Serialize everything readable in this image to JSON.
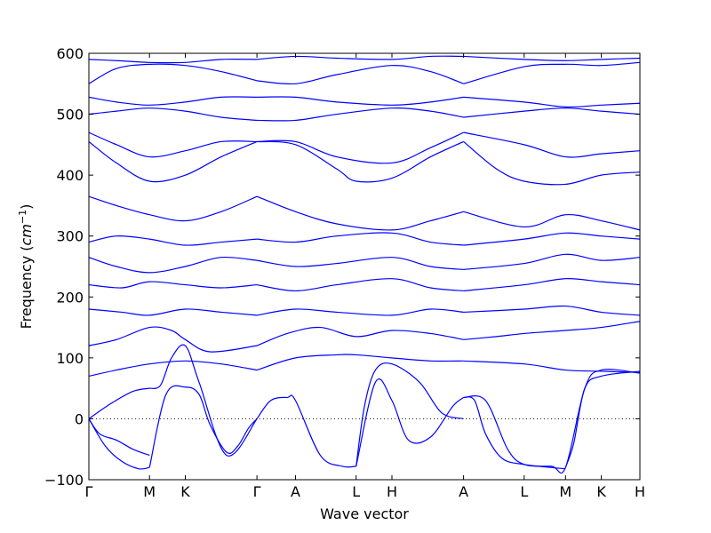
{
  "chart_data": {
    "type": "line",
    "xlabel": "Wave vector",
    "ylabel": "Frequency ($cm^{-1}$)",
    "ylabel_parts": {
      "main": "Frequency ",
      "open": "(",
      "unit": "cm",
      "sup": "−1",
      "close": ")"
    },
    "ylim": [
      -100,
      600
    ],
    "yticks": [
      -100,
      0,
      100,
      200,
      300,
      400,
      500,
      600
    ],
    "x_ticks": [
      {
        "label": "Γ",
        "x": 0
      },
      {
        "label": "M",
        "x": 0.11
      },
      {
        "label": "K",
        "x": 0.175
      },
      {
        "label": "Γ",
        "x": 0.305
      },
      {
        "label": "A",
        "x": 0.375
      },
      {
        "label": "L",
        "x": 0.485
      },
      {
        "label": "H",
        "x": 0.55
      },
      {
        "label": "A",
        "x": 0.68
      },
      {
        "label": "L",
        "x": 0.79
      },
      {
        "label": "M",
        "x": 0.865
      },
      {
        "label": "K",
        "x": 0.93
      },
      {
        "label": "H",
        "x": 1.0
      }
    ],
    "zero_line": 0,
    "series_color": "#0000ff",
    "series": [
      {
        "x": [
          0,
          0.03,
          0.06,
          0.09,
          0.11
        ],
        "y": [
          0,
          -45,
          -70,
          -82,
          -80
        ]
      },
      {
        "x": [
          0,
          0.02,
          0.05,
          0.08,
          0.11
        ],
        "y": [
          0,
          -25,
          -35,
          -50,
          -60
        ]
      },
      {
        "x": [
          0,
          0.04,
          0.08,
          0.11
        ],
        "y": [
          0,
          25,
          45,
          50
        ]
      },
      {
        "x": [
          0.11,
          0.14,
          0.175,
          0.2,
          0.22,
          0.25,
          0.27,
          0.29,
          0.305
        ],
        "y": [
          -80,
          40,
          52,
          40,
          -10,
          -55,
          -45,
          -15,
          0
        ]
      },
      {
        "x": [
          0.11,
          0.13,
          0.15,
          0.175,
          0.2,
          0.25,
          0.305
        ],
        "y": [
          50,
          55,
          100,
          120,
          60,
          -60,
          0
        ]
      },
      {
        "x": [
          0.305,
          0.33,
          0.36,
          0.375,
          0.42,
          0.46,
          0.485
        ],
        "y": [
          0,
          30,
          35,
          30,
          -60,
          -78,
          -78
        ]
      },
      {
        "x": [
          0.485,
          0.5,
          0.52,
          0.55,
          0.6,
          0.64,
          0.68
        ],
        "y": [
          -78,
          20,
          80,
          90,
          60,
          10,
          0
        ]
      },
      {
        "x": [
          0.485,
          0.52,
          0.55,
          0.58,
          0.62,
          0.66,
          0.68
        ],
        "y": [
          -78,
          60,
          30,
          -35,
          -30,
          20,
          35
        ]
      },
      {
        "x": [
          0.68,
          0.7,
          0.72,
          0.75,
          0.79,
          0.84,
          0.865
        ],
        "y": [
          35,
          30,
          -25,
          -65,
          -75,
          -80,
          -82
        ]
      },
      {
        "x": [
          0.68,
          0.72,
          0.76,
          0.79,
          0.84,
          0.865,
          0.9,
          0.93,
          1.0
        ],
        "y": [
          35,
          30,
          -50,
          -75,
          -78,
          -80,
          50,
          80,
          75
        ]
      },
      {
        "x": [
          0.865,
          0.88,
          0.9,
          0.93,
          1.0
        ],
        "y": [
          -80,
          -40,
          50,
          70,
          78
        ]
      },
      {
        "x": [
          0,
          0.05,
          0.11,
          0.175,
          0.24,
          0.305
        ],
        "y": [
          70,
          80,
          90,
          95,
          90,
          80
        ]
      },
      {
        "x": [
          0.305,
          0.375,
          0.45,
          0.485,
          0.55,
          0.62,
          0.68
        ],
        "y": [
          80,
          100,
          105,
          105,
          100,
          95,
          95
        ]
      },
      {
        "x": [
          0.68,
          0.79,
          0.865,
          0.93,
          1.0
        ],
        "y": [
          95,
          90,
          80,
          78,
          76
        ]
      },
      {
        "x": [
          0,
          0.05,
          0.11,
          0.15,
          0.175,
          0.22,
          0.305
        ],
        "y": [
          120,
          130,
          150,
          145,
          130,
          110,
          120
        ]
      },
      {
        "x": [
          0.305,
          0.36,
          0.42,
          0.485,
          0.55,
          0.62,
          0.68
        ],
        "y": [
          120,
          140,
          150,
          135,
          145,
          140,
          130
        ]
      },
      {
        "x": [
          0.68,
          0.74,
          0.79,
          0.865,
          0.93,
          1.0
        ],
        "y": [
          130,
          135,
          140,
          145,
          150,
          160
        ]
      },
      {
        "x": [
          0,
          0.06,
          0.11,
          0.175,
          0.24,
          0.305
        ],
        "y": [
          180,
          175,
          170,
          180,
          175,
          170
        ]
      },
      {
        "x": [
          0.305,
          0.375,
          0.45,
          0.55,
          0.62,
          0.68
        ],
        "y": [
          170,
          180,
          175,
          170,
          180,
          175
        ]
      },
      {
        "x": [
          0.68,
          0.79,
          0.865,
          0.93,
          1.0
        ],
        "y": [
          175,
          180,
          185,
          175,
          170
        ]
      },
      {
        "x": [
          0,
          0.06,
          0.11,
          0.175,
          0.24,
          0.305
        ],
        "y": [
          220,
          215,
          225,
          220,
          215,
          220
        ]
      },
      {
        "x": [
          0.305,
          0.375,
          0.45,
          0.55,
          0.62,
          0.68
        ],
        "y": [
          220,
          210,
          220,
          230,
          215,
          210
        ]
      },
      {
        "x": [
          0.68,
          0.79,
          0.865,
          0.93,
          1.0
        ],
        "y": [
          210,
          220,
          230,
          225,
          220
        ]
      },
      {
        "x": [
          0,
          0.05,
          0.11,
          0.175,
          0.24,
          0.305
        ],
        "y": [
          265,
          250,
          240,
          250,
          265,
          260
        ]
      },
      {
        "x": [
          0.305,
          0.375,
          0.45,
          0.55,
          0.62,
          0.68
        ],
        "y": [
          260,
          250,
          255,
          265,
          250,
          245
        ]
      },
      {
        "x": [
          0.68,
          0.79,
          0.865,
          0.93,
          1.0
        ],
        "y": [
          245,
          255,
          270,
          260,
          265
        ]
      },
      {
        "x": [
          0,
          0.05,
          0.11,
          0.175,
          0.24,
          0.305
        ],
        "y": [
          290,
          300,
          295,
          285,
          290,
          295
        ]
      },
      {
        "x": [
          0.305,
          0.375,
          0.45,
          0.55,
          0.62,
          0.68
        ],
        "y": [
          295,
          290,
          300,
          305,
          290,
          285
        ]
      },
      {
        "x": [
          0.68,
          0.79,
          0.865,
          0.93,
          1.0
        ],
        "y": [
          285,
          295,
          305,
          300,
          295
        ]
      },
      {
        "x": [
          0,
          0.05,
          0.11,
          0.175,
          0.24,
          0.305
        ],
        "y": [
          365,
          350,
          335,
          325,
          340,
          365
        ]
      },
      {
        "x": [
          0.305,
          0.375,
          0.45,
          0.55,
          0.62,
          0.68
        ],
        "y": [
          365,
          340,
          320,
          310,
          325,
          340
        ]
      },
      {
        "x": [
          0.68,
          0.79,
          0.865,
          0.93,
          1.0
        ],
        "y": [
          340,
          315,
          335,
          325,
          310
        ]
      },
      {
        "x": [
          0,
          0.05,
          0.11,
          0.175,
          0.24,
          0.305
        ],
        "y": [
          455,
          420,
          390,
          400,
          430,
          455
        ]
      },
      {
        "x": [
          0.305,
          0.375,
          0.45,
          0.485,
          0.55,
          0.62,
          0.68
        ],
        "y": [
          455,
          450,
          410,
          390,
          395,
          430,
          455
        ]
      },
      {
        "x": [
          0.68,
          0.74,
          0.79,
          0.865,
          0.93,
          1.0
        ],
        "y": [
          455,
          410,
          390,
          385,
          400,
          405
        ]
      },
      {
        "x": [
          0,
          0.05,
          0.11,
          0.175,
          0.24,
          0.305
        ],
        "y": [
          470,
          450,
          430,
          440,
          455,
          455
        ]
      },
      {
        "x": [
          0.305,
          0.375,
          0.45,
          0.55,
          0.62,
          0.68
        ],
        "y": [
          455,
          455,
          430,
          420,
          445,
          470
        ]
      },
      {
        "x": [
          0.68,
          0.79,
          0.865,
          0.93,
          1.0
        ],
        "y": [
          470,
          450,
          430,
          435,
          440
        ]
      },
      {
        "x": [
          0,
          0.05,
          0.11,
          0.175,
          0.24,
          0.305
        ],
        "y": [
          500,
          505,
          510,
          505,
          495,
          490
        ]
      },
      {
        "x": [
          0.305,
          0.375,
          0.45,
          0.55,
          0.62,
          0.68
        ],
        "y": [
          490,
          490,
          500,
          510,
          505,
          495
        ]
      },
      {
        "x": [
          0.68,
          0.79,
          0.865,
          0.93,
          1.0
        ],
        "y": [
          495,
          505,
          510,
          505,
          500
        ]
      },
      {
        "x": [
          0,
          0.05,
          0.11,
          0.175,
          0.24,
          0.305
        ],
        "y": [
          528,
          520,
          515,
          520,
          528,
          528
        ]
      },
      {
        "x": [
          0.305,
          0.375,
          0.45,
          0.55,
          0.62,
          0.68
        ],
        "y": [
          528,
          528,
          520,
          515,
          520,
          528
        ]
      },
      {
        "x": [
          0.68,
          0.79,
          0.865,
          0.93,
          1.0
        ],
        "y": [
          528,
          520,
          512,
          515,
          518
        ]
      },
      {
        "x": [
          0,
          0.05,
          0.11,
          0.175,
          0.24,
          0.305
        ],
        "y": [
          550,
          575,
          582,
          580,
          570,
          555
        ]
      },
      {
        "x": [
          0.305,
          0.375,
          0.45,
          0.55,
          0.62,
          0.68
        ],
        "y": [
          555,
          550,
          565,
          580,
          570,
          550
        ]
      },
      {
        "x": [
          0.68,
          0.79,
          0.865,
          0.93,
          1.0
        ],
        "y": [
          550,
          578,
          582,
          580,
          585
        ]
      },
      {
        "x": [
          0,
          0.05,
          0.11,
          0.175,
          0.24,
          0.305
        ],
        "y": [
          590,
          588,
          585,
          585,
          590,
          590
        ]
      },
      {
        "x": [
          0.305,
          0.375,
          0.45,
          0.55,
          0.62,
          0.68
        ],
        "y": [
          590,
          595,
          592,
          590,
          595,
          595
        ]
      },
      {
        "x": [
          0.68,
          0.79,
          0.865,
          0.93,
          1.0
        ],
        "y": [
          595,
          590,
          588,
          590,
          592
        ]
      }
    ]
  }
}
